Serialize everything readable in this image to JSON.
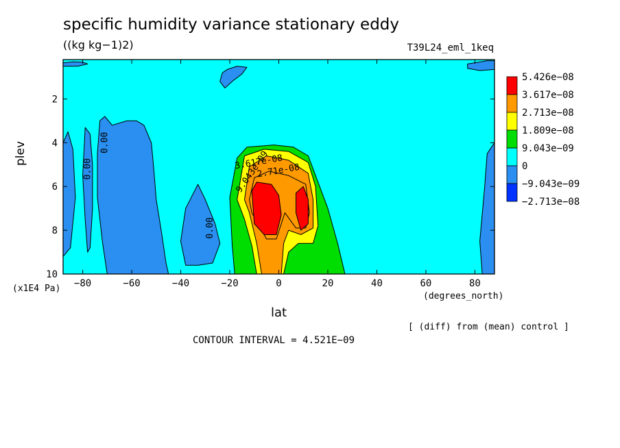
{
  "chart_data": {
    "type": "heatmap",
    "title": "specific humidity variance stationary eddy",
    "units": "((kg kg−1)2)",
    "run_label": "T39L24_eml_1keq",
    "xlabel": "lat",
    "x_units": "(degrees_north)",
    "ylabel": "plev",
    "y_units": "(x1E4 Pa)",
    "xlim": [
      -88,
      88
    ],
    "ylim": [
      0.2,
      10
    ],
    "y_reversed": true,
    "x_ticks": [
      -80,
      -60,
      -40,
      -20,
      0,
      20,
      40,
      60,
      80
    ],
    "x_tick_labels": [
      "−80",
      "−60",
      "−40",
      "−20",
      "0",
      "20",
      "40",
      "60",
      "80"
    ],
    "y_ticks": [
      2,
      4,
      6,
      8,
      10
    ],
    "contour_interval_text": "CONTOUR INTERVAL = 4.521E−09",
    "note": "[ (diff) from (mean) control ]",
    "legend": {
      "placement": "right",
      "colors": [
        "#ff0000",
        "#ff9900",
        "#ffff00",
        "#00dd00",
        "#00ffff",
        "#2a8ff0",
        "#0033ff"
      ],
      "labels": [
        "5.426e−08",
        "3.617e−08",
        "2.713e−08",
        "1.809e−08",
        "9.043e−09",
        "0",
        "−9.043e−09",
        "−2.713e−08"
      ]
    },
    "contour_labels": [
      {
        "text": "0.00",
        "x": -77,
        "y": 5.2,
        "rotate": -90
      },
      {
        "text": "0.00",
        "x": -70,
        "y": 4.0,
        "rotate": -90
      },
      {
        "text": "0.00",
        "x": -27,
        "y": 7.9,
        "rotate": -90
      },
      {
        "text": "9.043e-09",
        "x": -10,
        "y": 5.4,
        "rotate": -55
      },
      {
        "text": "3.617e-08",
        "x": -8,
        "y": 5.0,
        "rotate": -10
      },
      {
        "text": "2.71e-08",
        "x": 0,
        "y": 5.4,
        "rotate": -10
      }
    ],
    "regions": [
      {
        "level": "neg1",
        "points": [
          [
            -88,
            4.0
          ],
          [
            -86,
            3.5
          ],
          [
            -84,
            4.3
          ],
          [
            -83,
            6.5
          ],
          [
            -85,
            8.8
          ],
          [
            -88,
            9.2
          ]
        ]
      },
      {
        "level": "neg1",
        "points": [
          [
            -79,
            3.3
          ],
          [
            -77,
            3.6
          ],
          [
            -76,
            5.0
          ],
          [
            -76,
            7.0
          ],
          [
            -77,
            8.8
          ],
          [
            -78,
            9.0
          ],
          [
            -79,
            7.5
          ],
          [
            -80,
            5.5
          ]
        ]
      },
      {
        "level": "neg1",
        "points": [
          [
            -73,
            3.0
          ],
          [
            -71,
            2.8
          ],
          [
            -68,
            3.2
          ],
          [
            -62,
            3.0
          ],
          [
            -58,
            3.0
          ],
          [
            -55,
            3.2
          ],
          [
            -52,
            4.0
          ],
          [
            -51,
            5.2
          ],
          [
            -50,
            6.6
          ],
          [
            -48,
            8.0
          ],
          [
            -46,
            9.5
          ],
          [
            -45,
            10
          ],
          [
            -70,
            10
          ],
          [
            -72,
            8.5
          ],
          [
            -74,
            6.5
          ],
          [
            -74,
            4.5
          ]
        ]
      },
      {
        "level": "neg1",
        "points": [
          [
            -40,
            8.5
          ],
          [
            -38,
            7.0
          ],
          [
            -33,
            5.9
          ],
          [
            -30,
            6.6
          ],
          [
            -26,
            7.7
          ],
          [
            -24,
            8.6
          ],
          [
            -27,
            9.5
          ],
          [
            -33,
            9.6
          ],
          [
            -38,
            9.6
          ]
        ]
      },
      {
        "level": "neg1",
        "points": [
          [
            -23,
            0.8
          ],
          [
            -21,
            0.65
          ],
          [
            -17,
            0.5
          ],
          [
            -13,
            0.55
          ],
          [
            -15,
            0.85
          ],
          [
            -19,
            1.2
          ],
          [
            -22,
            1.5
          ],
          [
            -24,
            1.2
          ]
        ]
      },
      {
        "level": "neg1",
        "points": [
          [
            -16,
            7.6
          ],
          [
            -14,
            8.0
          ],
          [
            -13,
            9.0
          ],
          [
            -15,
            9.4
          ],
          [
            -18,
            9.2
          ],
          [
            -18,
            8.4
          ]
        ]
      },
      {
        "level": "neg2",
        "points": [
          [
            -16.5,
            8.2
          ],
          [
            -15,
            8.3
          ],
          [
            -14.5,
            8.9
          ],
          [
            -16,
            9.0
          ],
          [
            -17,
            8.6
          ]
        ]
      },
      {
        "level": "neg1",
        "points": [
          [
            -88,
            0.35
          ],
          [
            -84,
            0.3
          ],
          [
            -80,
            0.32
          ],
          [
            -78,
            0.4
          ],
          [
            -82,
            0.5
          ],
          [
            -88,
            0.5
          ]
        ]
      },
      {
        "level": "neg1",
        "points": [
          [
            77,
            0.4
          ],
          [
            85,
            0.25
          ],
          [
            88,
            0.25
          ],
          [
            88,
            0.65
          ],
          [
            82,
            0.7
          ],
          [
            77,
            0.6
          ]
        ]
      },
      {
        "level": "neg1",
        "points": [
          [
            85,
            4.5
          ],
          [
            88,
            4.0
          ],
          [
            88,
            10
          ],
          [
            83,
            10
          ],
          [
            82,
            8.5
          ],
          [
            84,
            6.0
          ]
        ]
      },
      {
        "level": "c1",
        "points": [
          [
            -20,
            6.5
          ],
          [
            -17,
            4.7
          ],
          [
            -13,
            4.2
          ],
          [
            -2,
            4.1
          ],
          [
            6,
            4.2
          ],
          [
            12,
            4.6
          ],
          [
            16,
            5.8
          ],
          [
            20,
            7.0
          ],
          [
            24,
            8.6
          ],
          [
            27,
            10
          ],
          [
            -18,
            10
          ],
          [
            -19,
            8.7
          ]
        ]
      },
      {
        "level": "c2",
        "points": [
          [
            -17,
            6.6
          ],
          [
            -14,
            4.6
          ],
          [
            -6,
            4.3
          ],
          [
            4,
            4.4
          ],
          [
            12,
            4.9
          ],
          [
            15,
            6.0
          ],
          [
            16,
            7.8
          ],
          [
            14,
            8.6
          ],
          [
            8,
            8.6
          ],
          [
            4,
            9.0
          ],
          [
            2,
            10
          ],
          [
            -9,
            10
          ],
          [
            -11,
            8.7
          ],
          [
            -14,
            7.5
          ]
        ]
      },
      {
        "level": "c3",
        "points": [
          [
            -14,
            6.6
          ],
          [
            -12,
            5.1
          ],
          [
            -5,
            4.6
          ],
          [
            4,
            4.8
          ],
          [
            12,
            5.4
          ],
          [
            14,
            6.6
          ],
          [
            14,
            7.9
          ],
          [
            9,
            8.2
          ],
          [
            4,
            8.0
          ],
          [
            2,
            8.6
          ],
          [
            1,
            10
          ],
          [
            -7,
            10
          ],
          [
            -9,
            8.6
          ],
          [
            -12,
            7.2
          ]
        ]
      },
      {
        "level": "c4",
        "points": [
          [
            -12,
            6.6
          ],
          [
            -10,
            5.6
          ],
          [
            -4,
            5.3
          ],
          [
            4,
            5.5
          ],
          [
            11,
            5.9
          ],
          [
            12.5,
            7.2
          ],
          [
            11,
            7.9
          ],
          [
            7,
            7.9
          ],
          [
            2.5,
            7.2
          ],
          [
            -1,
            8.4
          ],
          [
            -5,
            8.4
          ],
          [
            -8,
            7.8
          ],
          [
            -11,
            7.2
          ]
        ]
      },
      {
        "level": "c5",
        "points": [
          [
            -11,
            6.2
          ],
          [
            -9,
            5.8
          ],
          [
            -3,
            5.9
          ],
          [
            0,
            6.4
          ],
          [
            1,
            7.3
          ],
          [
            -1,
            8.2
          ],
          [
            -6,
            8.2
          ],
          [
            -10,
            7.7
          ]
        ]
      },
      {
        "level": "c5",
        "points": [
          [
            7,
            6.3
          ],
          [
            10,
            6.0
          ],
          [
            12,
            6.6
          ],
          [
            12,
            7.7
          ],
          [
            9,
            8.0
          ],
          [
            7,
            7.2
          ]
        ]
      }
    ]
  }
}
